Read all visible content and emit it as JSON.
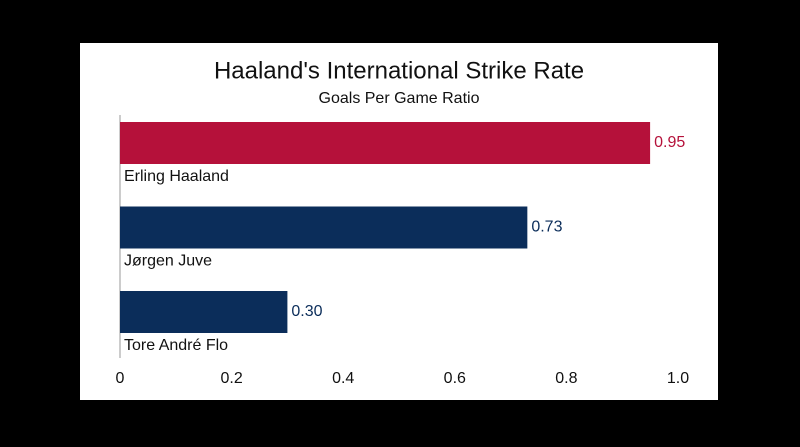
{
  "chart_data": {
    "type": "hbar",
    "title": "Haaland's International Strike Rate",
    "subtitle": "Goals Per Game Ratio",
    "categories": [
      "Erling Haaland",
      "Jørgen Juve",
      "Tore André Flo"
    ],
    "values": [
      0.95,
      0.73,
      0.3
    ],
    "value_labels": [
      "0.95",
      "0.73",
      "0.30"
    ],
    "colors": [
      "#b5113a",
      "#0b2d5a",
      "#0b2d5a"
    ],
    "xlim": [
      0,
      1
    ],
    "xticks": [
      0,
      0.2,
      0.4,
      0.6,
      0.8,
      {
        "value": 1,
        "label": "1.0"
      }
    ],
    "grid": false
  }
}
